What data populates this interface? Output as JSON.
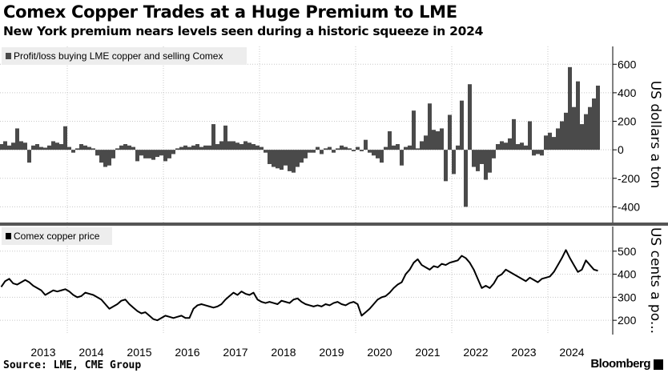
{
  "title": "Comex Copper Trades at a Huge Premium to LME",
  "subtitle": "New York premium nears levels seen during a historic squeeze in 2024",
  "source": "Source: LME, CME Group",
  "brand": "Bloomberg",
  "colors": {
    "bars": "#4a4a4a",
    "line": "#000000",
    "legend_bg": "#ededed",
    "divider": "#555555",
    "grid": "#c8c8c8"
  },
  "chart_data": [
    {
      "type": "bar",
      "legend": "Profit/loss buying LME copper and selling Comex",
      "legend_placement": "top-left",
      "ylabel": "US dollars a ton",
      "yticks": [
        600,
        400,
        200,
        0,
        -200,
        -400
      ],
      "ylim": [
        -510,
        725
      ],
      "grid": true,
      "series": [
        {
          "values": [
            40,
            60,
            30,
            50,
            150,
            60,
            50,
            -90,
            30,
            40,
            20,
            15,
            30,
            60,
            50,
            40,
            165,
            20,
            -20,
            10,
            40,
            30,
            20,
            10,
            -40,
            -90,
            -120,
            -110,
            -60,
            10,
            30,
            40,
            30,
            20,
            -80,
            -40,
            -60,
            -60,
            -70,
            -50,
            -40,
            -80,
            -60,
            -30,
            10,
            20,
            30,
            20,
            30,
            40,
            20,
            30,
            30,
            180,
            40,
            60,
            170,
            60,
            60,
            50,
            40,
            60,
            50,
            40,
            30,
            20,
            -20,
            -100,
            -120,
            -130,
            -140,
            -110,
            -150,
            -160,
            -120,
            -90,
            -60,
            -20,
            -20,
            20,
            -30,
            10,
            20,
            -20,
            10,
            30,
            20,
            10,
            -10,
            20,
            -10,
            70,
            -20,
            -40,
            -60,
            -90,
            20,
            130,
            30,
            40,
            -110,
            20,
            30,
            275,
            10,
            60,
            100,
            325,
            140,
            130,
            150,
            -220,
            245,
            -170,
            30,
            345,
            -400,
            460,
            -120,
            -150,
            -100,
            -210,
            -160,
            -60,
            40,
            60,
            50,
            80,
            215,
            40,
            50,
            30,
            200,
            -40,
            -30,
            -40,
            100,
            120,
            90,
            150,
            200,
            260,
            580,
            300,
            480,
            180,
            250,
            300,
            360,
            450
          ]
        }
      ]
    },
    {
      "type": "line",
      "legend": "Comex copper price",
      "legend_placement": "top-left",
      "ylabel": "US cents a po...",
      "yticks": [
        500,
        400,
        300,
        200
      ],
      "ylim": [
        138,
        607
      ],
      "grid": true,
      "series": [
        {
          "values": [
            345,
            370,
            380,
            360,
            355,
            365,
            375,
            365,
            350,
            340,
            330,
            310,
            320,
            330,
            325,
            330,
            335,
            325,
            310,
            300,
            305,
            320,
            315,
            310,
            300,
            290,
            270,
            250,
            260,
            270,
            285,
            290,
            270,
            255,
            240,
            230,
            235,
            220,
            205,
            200,
            210,
            220,
            215,
            210,
            215,
            220,
            210,
            210,
            250,
            265,
            270,
            265,
            260,
            255,
            260,
            270,
            290,
            305,
            320,
            310,
            325,
            315,
            310,
            320,
            290,
            280,
            275,
            280,
            275,
            270,
            285,
            280,
            275,
            290,
            295,
            280,
            270,
            265,
            260,
            265,
            260,
            270,
            265,
            275,
            280,
            270,
            265,
            275,
            280,
            270,
            220,
            235,
            250,
            270,
            290,
            300,
            305,
            320,
            340,
            355,
            365,
            400,
            420,
            450,
            465,
            440,
            430,
            420,
            435,
            430,
            445,
            440,
            450,
            455,
            460,
            480,
            470,
            450,
            420,
            380,
            340,
            350,
            340,
            360,
            390,
            400,
            420,
            410,
            400,
            390,
            380,
            370,
            385,
            375,
            365,
            380,
            385,
            390,
            410,
            440,
            470,
            505,
            470,
            440,
            410,
            420,
            460,
            440,
            420,
            415
          ]
        }
      ]
    }
  ],
  "x_ticks": [
    "2013",
    "2014",
    "2015",
    "2016",
    "2017",
    "2018",
    "2019",
    "2020",
    "2021",
    "2022",
    "2023",
    "2024"
  ],
  "x": [
    "2012-08",
    "2012-09",
    "2012-10",
    "2012-11",
    "2012-12",
    "2013-01",
    "2013-02",
    "2013-03",
    "2013-04",
    "2013-05",
    "2013-06",
    "2013-07",
    "2013-08",
    "2013-09",
    "2013-10",
    "2013-11",
    "2013-12",
    "2014-01",
    "2014-02",
    "2014-03",
    "2014-04",
    "2014-05",
    "2014-06",
    "2014-07",
    "2014-08",
    "2014-09",
    "2014-10",
    "2014-11",
    "2014-12",
    "2015-01",
    "2015-02",
    "2015-03",
    "2015-04",
    "2015-05",
    "2015-06",
    "2015-07",
    "2015-08",
    "2015-09",
    "2015-10",
    "2015-11",
    "2015-12",
    "2016-01",
    "2016-02",
    "2016-03",
    "2016-04",
    "2016-05",
    "2016-06",
    "2016-07",
    "2016-08",
    "2016-09",
    "2016-10",
    "2016-11",
    "2016-12",
    "2017-01",
    "2017-02",
    "2017-03",
    "2017-04",
    "2017-05",
    "2017-06",
    "2017-07",
    "2017-08",
    "2017-09",
    "2017-10",
    "2017-11",
    "2017-12",
    "2018-01",
    "2018-02",
    "2018-03",
    "2018-04",
    "2018-05",
    "2018-06",
    "2018-07",
    "2018-08",
    "2018-09",
    "2018-10",
    "2018-11",
    "2018-12",
    "2019-01",
    "2019-02",
    "2019-03",
    "2019-04",
    "2019-05",
    "2019-06",
    "2019-07",
    "2019-08",
    "2019-09",
    "2019-10",
    "2019-11",
    "2019-12",
    "2020-01",
    "2020-02",
    "2020-03",
    "2020-04",
    "2020-05",
    "2020-06",
    "2020-07",
    "2020-08",
    "2020-09",
    "2020-10",
    "2020-11",
    "2020-12",
    "2021-01",
    "2021-02",
    "2021-03",
    "2021-04",
    "2021-05",
    "2021-06",
    "2021-07",
    "2021-08",
    "2021-09",
    "2021-10",
    "2021-11",
    "2021-12",
    "2022-01",
    "2022-02",
    "2022-03",
    "2022-04",
    "2022-05",
    "2022-06",
    "2022-07",
    "2022-08",
    "2022-09",
    "2022-10",
    "2022-11",
    "2022-12",
    "2023-01",
    "2023-02",
    "2023-03",
    "2023-04",
    "2023-05",
    "2023-06",
    "2023-07",
    "2023-08",
    "2023-09",
    "2023-10",
    "2023-11",
    "2023-12",
    "2024-01",
    "2024-02",
    "2024-03",
    "2024-04",
    "2024-05",
    "2024-06",
    "2024-07",
    "2024-08",
    "2024-09",
    "2024-10",
    "2024-11",
    "2024-12",
    "2025-01"
  ]
}
